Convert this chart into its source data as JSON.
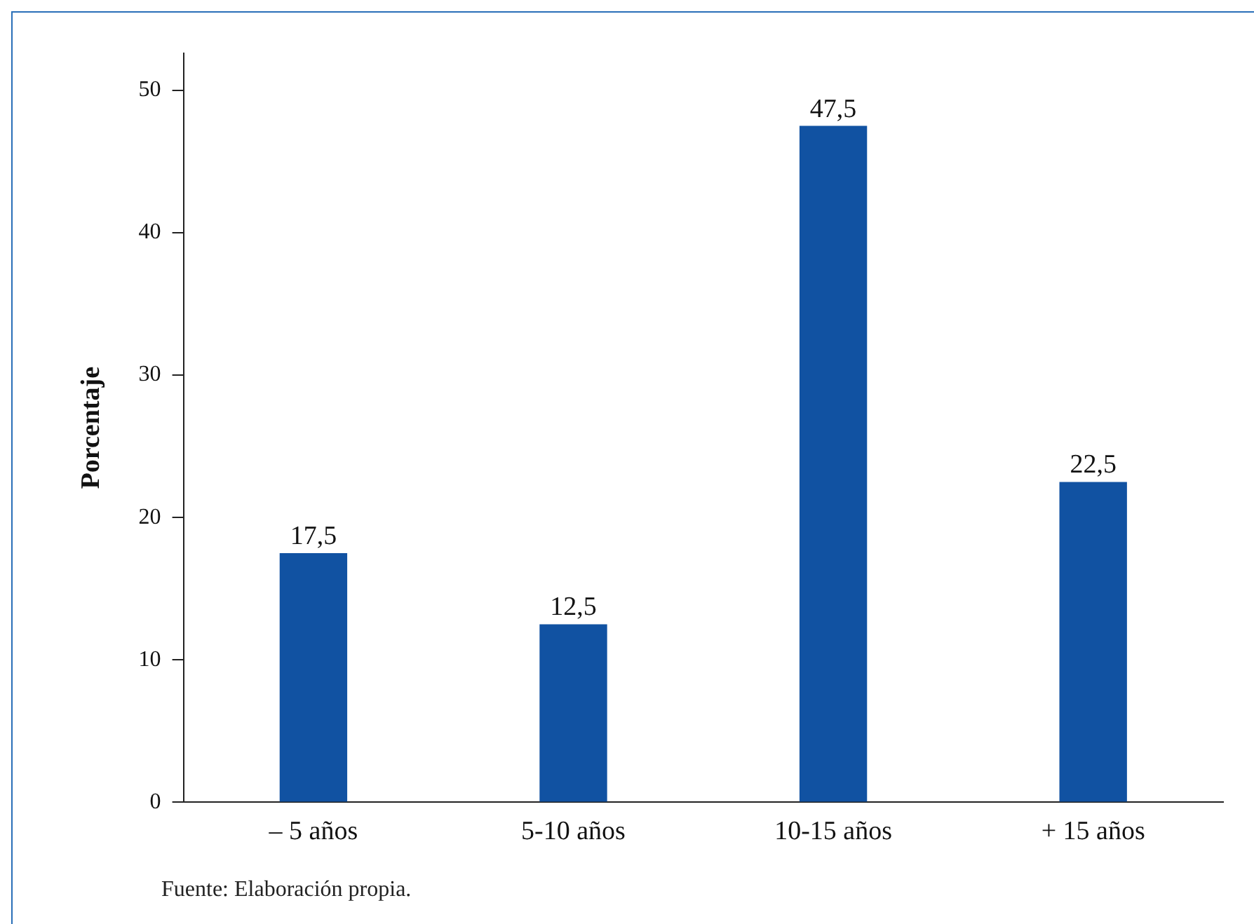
{
  "chart_data": {
    "type": "bar",
    "ylabel": "Porcentaje",
    "categories": [
      "– 5 años",
      "5-10 años",
      "10-15 años",
      "+ 15 años"
    ],
    "values": [
      17.5,
      12.5,
      47.5,
      22.5
    ],
    "color": "#1152a2",
    "value_labels": [
      "17,5",
      "12,5",
      "47,5",
      "22,5"
    ],
    "ylim": [
      0,
      52.6
    ],
    "yticks": [
      0,
      10,
      20,
      30,
      40,
      50
    ],
    "grid": false,
    "legend": false,
    "annotations": [
      "Fuente: Elaboración propia."
    ]
  }
}
